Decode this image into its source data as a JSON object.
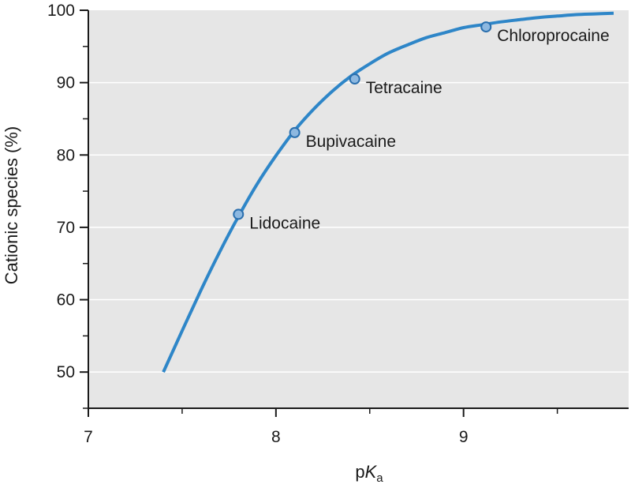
{
  "chart_data": {
    "type": "line",
    "title": "",
    "xlabel": "pKa",
    "xlabel_parts": {
      "main": "p",
      "italic": "K",
      "sub": "a"
    },
    "ylabel": "Cationic species (%)",
    "xlim": [
      7,
      9.88
    ],
    "ylim": [
      45,
      100
    ],
    "xticks": [
      7,
      8,
      9
    ],
    "xtick_labels": [
      "7",
      "8",
      "9"
    ],
    "xminor": [
      7.5,
      8.5,
      9.5
    ],
    "yticks": [
      50,
      60,
      70,
      80,
      90,
      100
    ],
    "ytick_labels": [
      "50",
      "60",
      "70",
      "80",
      "90",
      "100"
    ],
    "yminor": [
      45,
      55,
      65,
      75,
      85,
      95
    ],
    "grid": true,
    "curve": {
      "x": [
        7.4,
        7.5,
        7.6,
        7.7,
        7.8,
        7.9,
        8.0,
        8.1,
        8.2,
        8.3,
        8.4,
        8.5,
        8.6,
        8.7,
        8.8,
        8.9,
        9.0,
        9.1,
        9.2,
        9.3,
        9.4,
        9.5,
        9.6,
        9.7,
        9.8
      ],
      "y": [
        50.0,
        55.7,
        61.3,
        66.6,
        71.5,
        76.0,
        79.9,
        83.4,
        86.3,
        88.8,
        90.9,
        92.6,
        94.1,
        95.2,
        96.2,
        96.9,
        97.6,
        98.0,
        98.4,
        98.7,
        99.0,
        99.2,
        99.4,
        99.5,
        99.6
      ]
    },
    "points": [
      {
        "label": "Lidocaine",
        "x": 7.8,
        "y": 71.8
      },
      {
        "label": "Bupivacaine",
        "x": 8.1,
        "y": 83.1
      },
      {
        "label": "Tetracaine",
        "x": 8.42,
        "y": 90.5
      },
      {
        "label": "Chloroprocaine",
        "x": 9.12,
        "y": 97.7
      }
    ],
    "colors": {
      "plot_bg": "#e6e6e6",
      "grid": "#ffffff",
      "line": "#2e86c8",
      "marker_fill": "#8db8e0",
      "marker_edge": "#2a6fae",
      "axis": "#1a1a1a"
    }
  }
}
